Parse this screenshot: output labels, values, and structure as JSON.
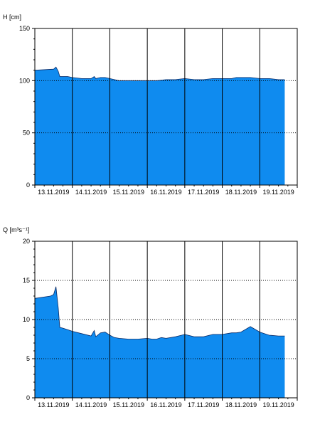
{
  "chart_data": [
    {
      "type": "area",
      "ylabel": "H [cm]",
      "ylim": [
        0,
        150
      ],
      "yticks": [
        "0",
        "50",
        "100",
        "150"
      ],
      "xlim": [
        "2019-11-13T00:00",
        "2019-11-20T00:00"
      ],
      "xtick_labels": [
        "13.11.2019",
        "14.11.2019",
        "15.11.2019",
        "16.11.2019",
        "17.11.2019",
        "18.11.2019",
        "19.11.2019"
      ],
      "grid": "horizontal dotted at 50 and 100, vertical solid at day boundaries",
      "fill_color": "#0f8bef",
      "series": [
        {
          "x": [
            "2019-11-13T00:00",
            "2019-11-13T12:00",
            "2019-11-13T13:30",
            "2019-11-13T15:00",
            "2019-11-13T16:00",
            "2019-11-13T18:00",
            "2019-11-13T21:00",
            "2019-11-14T00:00",
            "2019-11-14T06:00",
            "2019-11-14T12:00",
            "2019-11-14T14:00",
            "2019-11-14T15:00",
            "2019-11-14T18:00",
            "2019-11-14T21:00",
            "2019-11-15T00:00",
            "2019-11-15T03:00",
            "2019-11-15T06:00",
            "2019-11-15T12:00",
            "2019-11-15T18:00",
            "2019-11-16T00:00",
            "2019-11-16T06:00",
            "2019-11-16T12:00",
            "2019-11-16T18:00",
            "2019-11-17T00:00",
            "2019-11-17T06:00",
            "2019-11-17T12:00",
            "2019-11-17T18:00",
            "2019-11-18T00:00",
            "2019-11-18T06:00",
            "2019-11-18T09:00",
            "2019-11-18T12:00",
            "2019-11-18T18:00",
            "2019-11-19T00:00",
            "2019-11-19T06:00",
            "2019-11-19T12:00",
            "2019-11-19T16:00"
          ],
          "values": [
            110,
            111,
            113,
            109,
            104,
            104,
            104,
            103,
            102,
            102,
            104,
            102,
            103,
            103,
            102,
            101,
            100,
            100,
            100,
            100,
            100,
            101,
            101,
            102,
            101,
            101,
            102,
            102,
            102,
            103,
            103,
            103,
            102,
            102,
            101,
            101
          ]
        }
      ]
    },
    {
      "type": "area",
      "ylabel": "Q [m³s⁻¹]",
      "ylim": [
        0,
        20
      ],
      "yticks": [
        "0",
        "5",
        "10",
        "15",
        "20"
      ],
      "xlim": [
        "2019-11-13T00:00",
        "2019-11-20T00:00"
      ],
      "xtick_labels": [
        "13.11.2019",
        "14.11.2019",
        "15.11.2019",
        "16.11.2019",
        "17.11.2019",
        "18.11.2019",
        "19.11.2019"
      ],
      "grid": "horizontal dotted at 5, 10 and 15, vertical solid at day boundaries",
      "fill_color": "#0f8bef",
      "series": [
        {
          "x": [
            "2019-11-13T00:00",
            "2019-11-13T10:00",
            "2019-11-13T12:00",
            "2019-11-13T13:30",
            "2019-11-13T15:00",
            "2019-11-13T16:00",
            "2019-11-13T18:00",
            "2019-11-13T21:00",
            "2019-11-14T00:00",
            "2019-11-14T06:00",
            "2019-11-14T12:00",
            "2019-11-14T14:00",
            "2019-11-14T15:00",
            "2019-11-14T18:00",
            "2019-11-14T21:00",
            "2019-11-15T00:00",
            "2019-11-15T03:00",
            "2019-11-15T06:00",
            "2019-11-15T12:00",
            "2019-11-15T18:00",
            "2019-11-16T00:00",
            "2019-11-16T03:00",
            "2019-11-16T06:00",
            "2019-11-16T09:00",
            "2019-11-16T12:00",
            "2019-11-16T18:00",
            "2019-11-17T00:00",
            "2019-11-17T06:00",
            "2019-11-17T12:00",
            "2019-11-17T18:00",
            "2019-11-18T00:00",
            "2019-11-18T06:00",
            "2019-11-18T09:00",
            "2019-11-18T12:00",
            "2019-11-18T18:00",
            "2019-11-19T00:00",
            "2019-11-19T06:00",
            "2019-11-19T12:00",
            "2019-11-19T16:00"
          ],
          "values": [
            12.7,
            13.0,
            13.2,
            14.2,
            11.5,
            9.0,
            8.9,
            8.7,
            8.5,
            8.2,
            7.9,
            8.6,
            7.8,
            8.3,
            8.4,
            8.0,
            7.7,
            7.6,
            7.5,
            7.5,
            7.6,
            7.5,
            7.5,
            7.7,
            7.6,
            7.8,
            8.1,
            7.8,
            7.8,
            8.1,
            8.1,
            8.3,
            8.3,
            8.4,
            9.1,
            8.4,
            8.0,
            7.9,
            7.9
          ]
        }
      ]
    }
  ]
}
